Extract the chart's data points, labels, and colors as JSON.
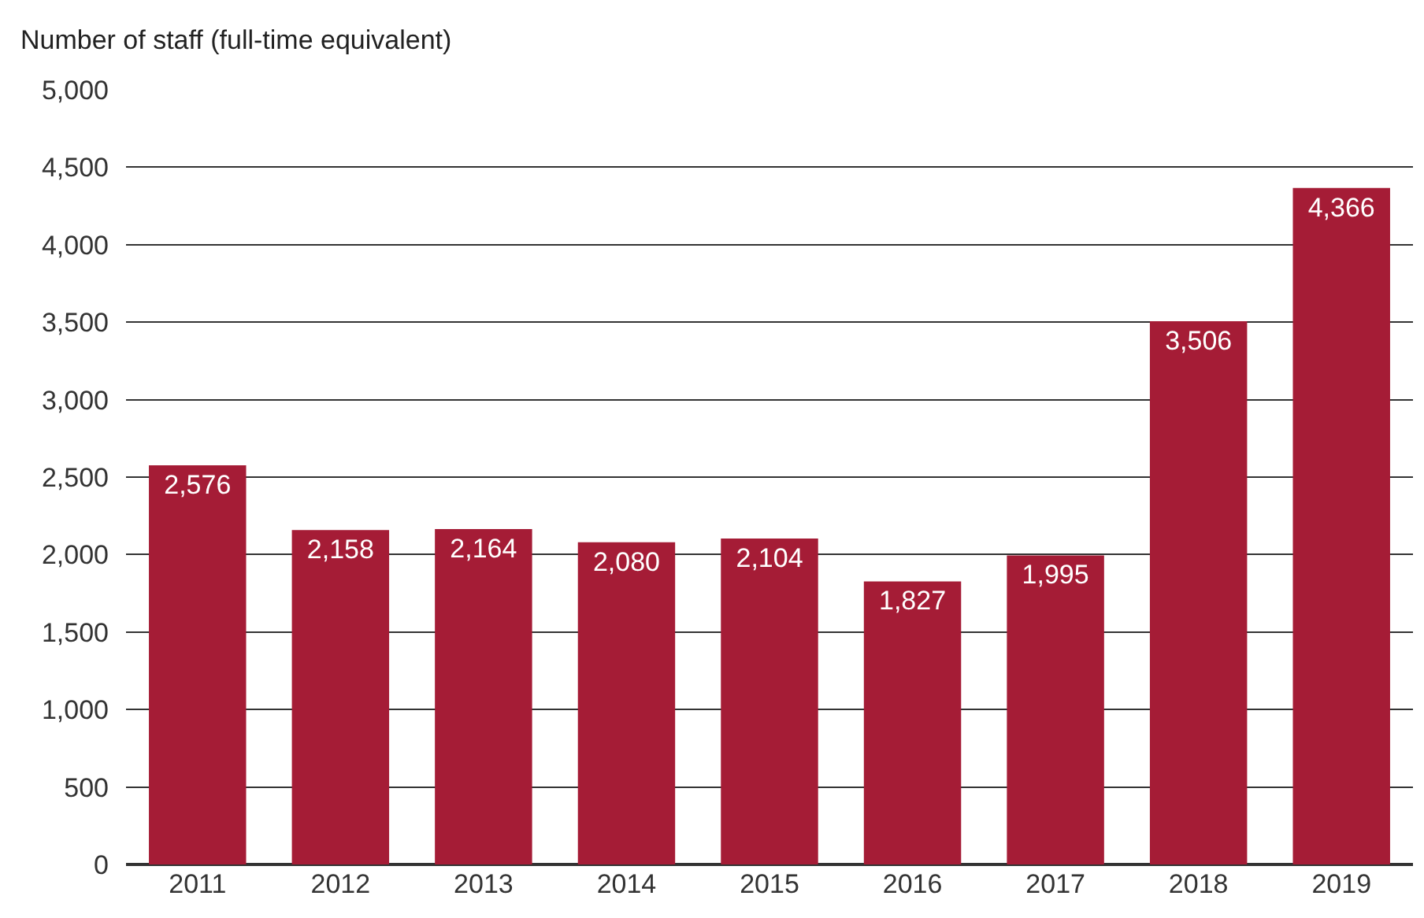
{
  "chart_data": {
    "type": "bar",
    "ylabel": "Number of staff (full-time equivalent)",
    "categories": [
      "2011",
      "2012",
      "2013",
      "2014",
      "2015",
      "2016",
      "2017",
      "2018",
      "2019"
    ],
    "values": [
      2576,
      2158,
      2164,
      2080,
      2104,
      1827,
      1995,
      3506,
      4366
    ],
    "value_labels": [
      "2,576",
      "2,158",
      "2,164",
      "2,080",
      "2,104",
      "1,827",
      "1,995",
      "3,506",
      "4,366"
    ],
    "color": "#a51c36",
    "ylim": [
      0,
      5000
    ],
    "yticks": [
      {
        "value": 0,
        "label": "0"
      },
      {
        "value": 500,
        "label": "500"
      },
      {
        "value": 1000,
        "label": "1,000"
      },
      {
        "value": 1500,
        "label": "1,500"
      },
      {
        "value": 2000,
        "label": "2,000"
      },
      {
        "value": 2500,
        "label": "2,500"
      },
      {
        "value": 3000,
        "label": "3,000"
      },
      {
        "value": 3500,
        "label": "3,500"
      },
      {
        "value": 4000,
        "label": "4,000"
      },
      {
        "value": 4500,
        "label": "4,500"
      },
      {
        "value": 5000,
        "label": "5,000"
      }
    ],
    "grid": "y"
  }
}
